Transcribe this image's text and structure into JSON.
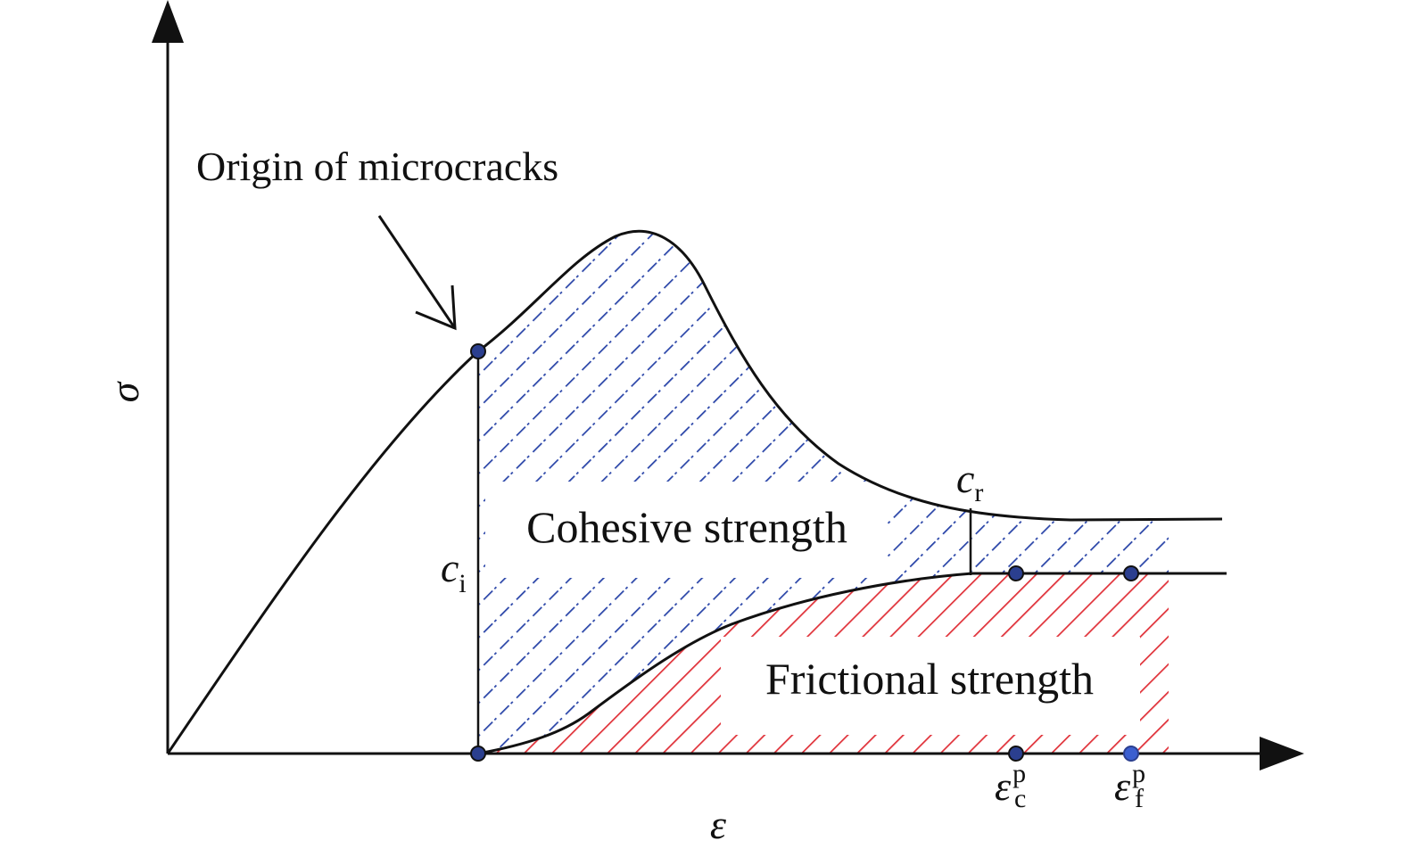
{
  "diagram": {
    "axes": {
      "y_label": "σ",
      "x_label": "ε"
    },
    "annotation": {
      "text": "Origin of microcracks"
    },
    "regions": {
      "cohesive": {
        "label": "Cohesive strength",
        "color": "#2a45a8"
      },
      "frictional": {
        "label": "Frictional strength",
        "color": "#e0323a"
      }
    },
    "symbols": {
      "ci": {
        "base": "c",
        "sub": "i"
      },
      "cr": {
        "base": "c",
        "sub": "r"
      },
      "eps_c": {
        "base": "ε",
        "sub": "c",
        "sup": "p"
      },
      "eps_f": {
        "base": "ε",
        "sub": "f",
        "sup": "p"
      }
    },
    "curve_color": "#111111",
    "marker_color": "#2b3f8f"
  }
}
